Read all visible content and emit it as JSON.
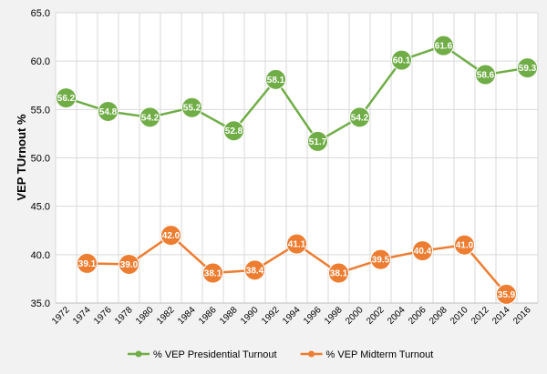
{
  "chart_data": {
    "type": "line",
    "ylabel": "VEP TUrnout %",
    "xlabel": "",
    "ylim": [
      35.0,
      65.0
    ],
    "y_ticks": [
      "35.0",
      "40.0",
      "45.0",
      "50.0",
      "55.0",
      "60.0",
      "65.0"
    ],
    "categories": [
      "1972",
      "1974",
      "1976",
      "1978",
      "1980",
      "1982",
      "1984",
      "1986",
      "1988",
      "1990",
      "1992",
      "1994",
      "1996",
      "1998",
      "2000",
      "2002",
      "2004",
      "2006",
      "2008",
      "2010",
      "2012",
      "2014",
      "2016"
    ],
    "grid": true,
    "legend_position": "bottom",
    "series": [
      {
        "name": "% VEP Presidential Turnout",
        "color": "#70ad47",
        "points": [
          {
            "x": "1972",
            "y": 56.2,
            "label": "56.2"
          },
          {
            "x": "1976",
            "y": 54.8,
            "label": "54.8"
          },
          {
            "x": "1980",
            "y": 54.2,
            "label": "54.2"
          },
          {
            "x": "1984",
            "y": 55.2,
            "label": "55.2"
          },
          {
            "x": "1988",
            "y": 52.8,
            "label": "52.8"
          },
          {
            "x": "1992",
            "y": 58.1,
            "label": "58.1"
          },
          {
            "x": "1996",
            "y": 51.7,
            "label": "51.7"
          },
          {
            "x": "2000",
            "y": 54.2,
            "label": "54.2"
          },
          {
            "x": "2004",
            "y": 60.1,
            "label": "60.1"
          },
          {
            "x": "2008",
            "y": 61.6,
            "label": "61.6"
          },
          {
            "x": "2012",
            "y": 58.6,
            "label": "58.6"
          },
          {
            "x": "2016",
            "y": 59.3,
            "label": "59.3"
          }
        ]
      },
      {
        "name": "% VEP Midterm Turnout",
        "color": "#ed7d31",
        "points": [
          {
            "x": "1974",
            "y": 39.1,
            "label": "39.1"
          },
          {
            "x": "1978",
            "y": 39.0,
            "label": "39.0"
          },
          {
            "x": "1982",
            "y": 42.0,
            "label": "42.0"
          },
          {
            "x": "1986",
            "y": 38.1,
            "label": "38.1"
          },
          {
            "x": "1990",
            "y": 38.4,
            "label": "38.4"
          },
          {
            "x": "1994",
            "y": 41.1,
            "label": "41.1"
          },
          {
            "x": "1998",
            "y": 38.1,
            "label": "38.1"
          },
          {
            "x": "2002",
            "y": 39.5,
            "label": "39.5"
          },
          {
            "x": "2006",
            "y": 40.4,
            "label": "40.4"
          },
          {
            "x": "2010",
            "y": 41.0,
            "label": "41.0"
          },
          {
            "x": "2014",
            "y": 35.9,
            "label": "35.9"
          }
        ]
      }
    ]
  }
}
